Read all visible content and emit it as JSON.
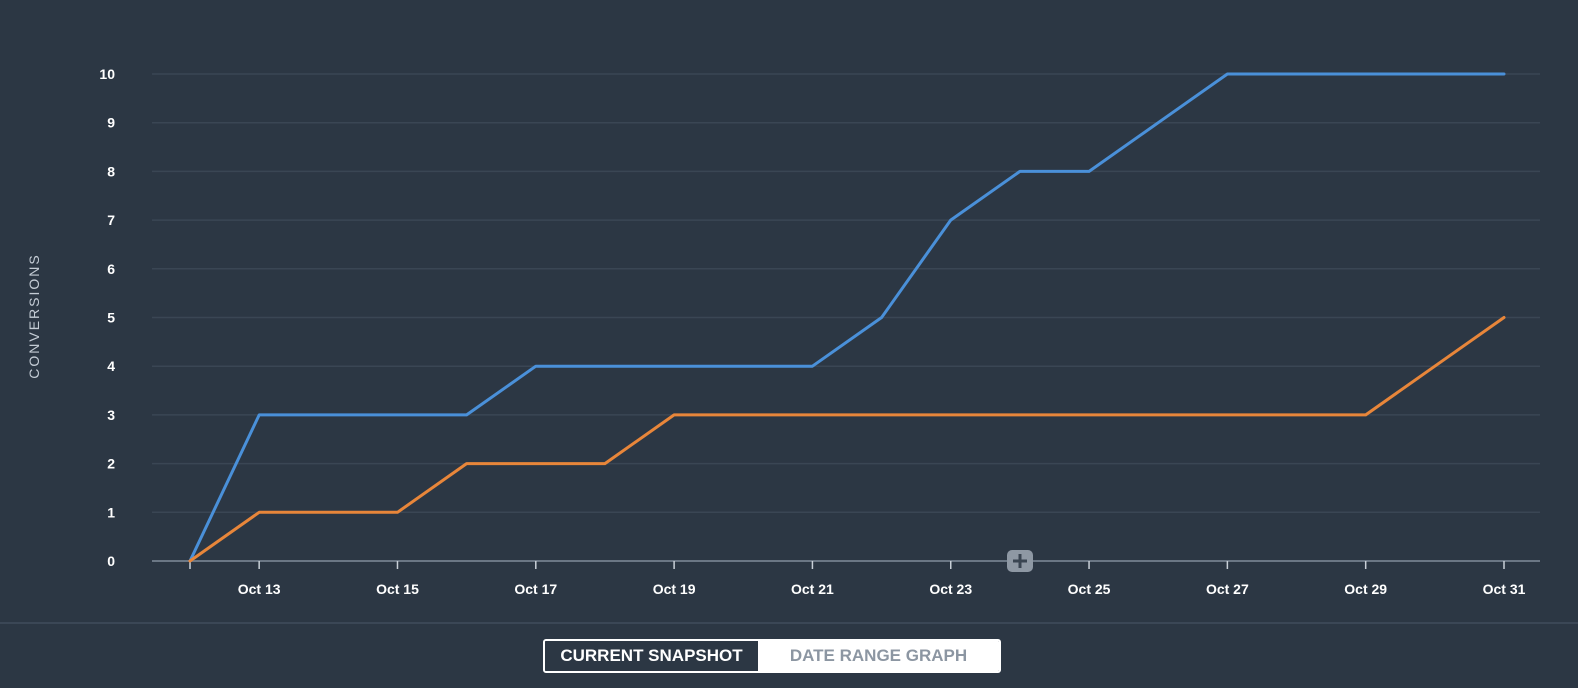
{
  "chart_data": {
    "type": "line",
    "ylabel": "CONVERSIONS",
    "ylim": [
      0,
      10
    ],
    "yticks": [
      "0",
      "1",
      "2",
      "3",
      "4",
      "5",
      "6",
      "7",
      "8",
      "9",
      "10"
    ],
    "x_dates": [
      "Oct 12",
      "Oct 13",
      "Oct 14",
      "Oct 15",
      "Oct 16",
      "Oct 17",
      "Oct 18",
      "Oct 19",
      "Oct 20",
      "Oct 21",
      "Oct 22",
      "Oct 23",
      "Oct 24",
      "Oct 25",
      "Oct 26",
      "Oct 27",
      "Oct 28",
      "Oct 29",
      "Oct 30",
      "Oct 31"
    ],
    "xtick_labels": [
      "Oct 13",
      "Oct 15",
      "Oct 17",
      "Oct 19",
      "Oct 21",
      "Oct 23",
      "Oct 25",
      "Oct 27",
      "Oct 29",
      "Oct 31"
    ],
    "grid": true,
    "legend": "none",
    "series": [
      {
        "color": "#4a90d9",
        "values": [
          0,
          3,
          3,
          3,
          3,
          4,
          4,
          4,
          4,
          4,
          5,
          7,
          8,
          8,
          9,
          10,
          10,
          10,
          10,
          10
        ]
      },
      {
        "color": "#e8863a",
        "values": [
          0,
          1,
          1,
          1,
          2,
          2,
          2,
          3,
          3,
          3,
          3,
          3,
          3,
          3,
          3,
          3,
          3,
          3,
          4,
          5
        ]
      }
    ],
    "gridline_color": "#3a4654",
    "axis_color": "#6b7785"
  },
  "controls": {
    "current_snapshot": "CURRENT SNAPSHOT",
    "date_range_graph": "DATE RANGE GRAPH",
    "add_icon": "plus-icon"
  }
}
